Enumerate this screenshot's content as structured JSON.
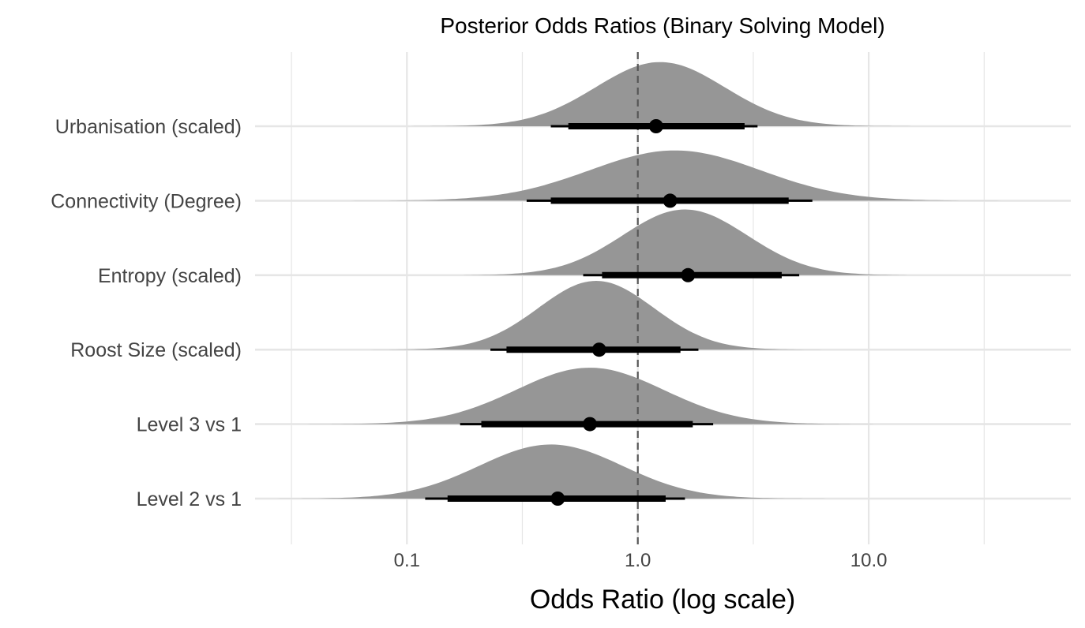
{
  "chart_data": {
    "type": "ridgeline",
    "title": "Posterior Odds Ratios (Binary Solving Model)",
    "xlabel": "Odds Ratio (log scale)",
    "ylabel": "",
    "x_scale": "log10",
    "xlim": [
      0.022,
      75
    ],
    "x_ticks": [
      {
        "value": 0.1,
        "label": "0.1"
      },
      {
        "value": 1,
        "label": "1.0"
      },
      {
        "value": 10,
        "label": "10.0"
      }
    ],
    "reference_line": {
      "x": 1.0,
      "style": "dashed"
    },
    "grid": true,
    "colors": {
      "density": "#969696",
      "interval": "#000000",
      "grid": "#e6e6e6",
      "reference": "#555555"
    },
    "series": [
      {
        "label": "Urbanisation (scaled)",
        "median": 1.2,
        "ci66": [
          0.5,
          2.9
        ],
        "ci95": [
          0.42,
          3.3
        ],
        "mode": 1.25,
        "log_sd": 0.28,
        "peak": 0.83
      },
      {
        "label": "Connectivity (Degree)",
        "median": 1.38,
        "ci66": [
          0.42,
          4.5
        ],
        "ci95": [
          0.33,
          5.7
        ],
        "mode": 1.45,
        "log_sd": 0.37,
        "peak": 0.65
      },
      {
        "label": "Entropy (scaled)",
        "median": 1.65,
        "ci66": [
          0.7,
          4.2
        ],
        "ci95": [
          0.58,
          5.0
        ],
        "mode": 1.6,
        "log_sd": 0.27,
        "peak": 0.85
      },
      {
        "label": "Roost Size (scaled)",
        "median": 0.68,
        "ci66": [
          0.27,
          1.53
        ],
        "ci95": [
          0.23,
          1.83
        ],
        "mode": 0.66,
        "log_sd": 0.25,
        "peak": 0.89
      },
      {
        "label": "Level 3 vs 1",
        "median": 0.62,
        "ci66": [
          0.21,
          1.73
        ],
        "ci95": [
          0.17,
          2.12
        ],
        "mode": 0.62,
        "log_sd": 0.32,
        "peak": 0.73
      },
      {
        "label": "Level 2 vs 1",
        "median": 0.45,
        "ci66": [
          0.15,
          1.32
        ],
        "ci95": [
          0.12,
          1.6
        ],
        "mode": 0.42,
        "log_sd": 0.31,
        "peak": 0.7
      }
    ]
  }
}
